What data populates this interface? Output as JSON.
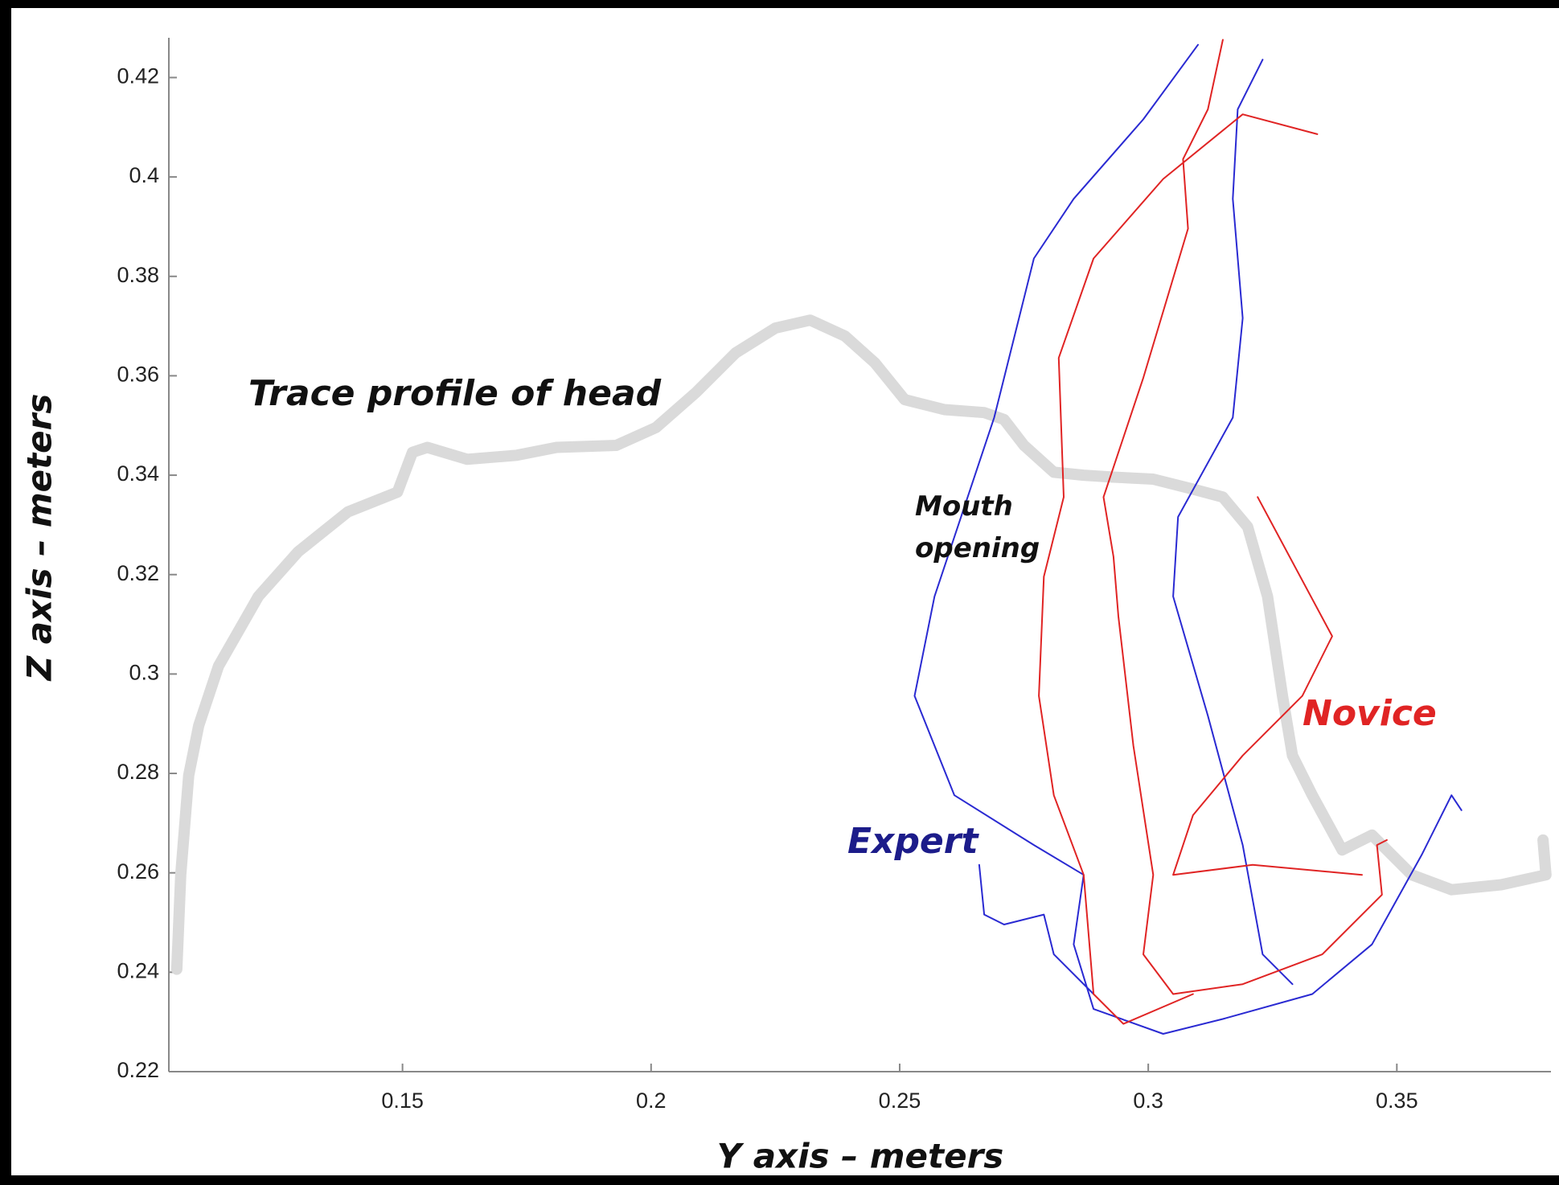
{
  "chart_data": {
    "type": "line",
    "x_label": "Y axis – meters",
    "y_label": "Z axis – meters",
    "annotation": "Mouth opening",
    "xlim": [
      0.103,
      0.381
    ],
    "ylim": [
      0.22,
      0.428
    ],
    "xticks": [
      0.15,
      0.2,
      0.25,
      0.3,
      0.35
    ],
    "yticks": [
      0.22,
      0.24,
      0.26,
      0.28,
      0.3,
      0.32,
      0.34,
      0.36,
      0.38,
      0.4,
      0.42
    ],
    "series": [
      {
        "name": "Trace profile of head",
        "color": "#dadada",
        "x": [
          0.1046,
          0.1054,
          0.107,
          0.109,
          0.113,
          0.121,
          0.129,
          0.139,
          0.149,
          0.152,
          0.155,
          0.163,
          0.173,
          0.181,
          0.193,
          0.201,
          0.209,
          0.217,
          0.225,
          0.232,
          0.239,
          0.245,
          0.251,
          0.259,
          0.267,
          0.271,
          0.275,
          0.281,
          0.287,
          0.293,
          0.301,
          0.309,
          0.315,
          0.32,
          0.324,
          0.327,
          0.329,
          0.333,
          0.339,
          0.345,
          0.353,
          0.361,
          0.371,
          0.38,
          0.3794
        ],
        "values": [
          0.2406,
          0.2596,
          0.2796,
          0.2896,
          0.3016,
          0.3156,
          0.3246,
          0.3326,
          0.3366,
          0.3446,
          0.3456,
          0.3432,
          0.344,
          0.3456,
          0.346,
          0.3496,
          0.3566,
          0.3646,
          0.3696,
          0.3712,
          0.368,
          0.3626,
          0.3552,
          0.3532,
          0.3526,
          0.3512,
          0.346,
          0.3406,
          0.34,
          0.3396,
          0.3392,
          0.3372,
          0.3356,
          0.3296,
          0.3156,
          0.2956,
          0.2836,
          0.2756,
          0.2646,
          0.2676,
          0.2596,
          0.2566,
          0.2576,
          0.2596,
          0.2666
        ]
      },
      {
        "name": "Expert",
        "color": "#2a2ad2",
        "x": [
          0.31,
          0.299,
          0.285,
          0.277,
          0.269,
          0.257,
          0.253,
          0.261,
          0.277,
          0.287,
          0.285,
          0.289,
          0.303,
          0.315,
          0.333,
          0.345,
          0.355,
          0.361,
          0.363,
          null,
          0.323,
          0.318,
          0.317,
          0.319,
          0.317,
          0.306,
          0.305,
          0.312,
          0.319,
          0.323,
          0.329,
          null,
          0.266,
          0.267,
          0.271,
          0.279,
          0.281,
          0.289
        ],
        "values": [
          0.4266,
          0.4116,
          0.3956,
          0.3836,
          0.3516,
          0.3156,
          0.2956,
          0.2756,
          0.2656,
          0.2596,
          0.2456,
          0.2326,
          0.2276,
          0.2306,
          0.2356,
          0.2456,
          0.2636,
          0.2756,
          0.2726,
          null,
          0.4236,
          0.4136,
          0.3956,
          0.3716,
          0.3516,
          0.3316,
          0.3156,
          0.2916,
          0.2656,
          0.2436,
          0.2376,
          null,
          0.2616,
          0.2516,
          0.2496,
          0.2516,
          0.2436,
          0.2356
        ]
      },
      {
        "name": "Novice",
        "color": "#e02424",
        "x": [
          0.315,
          0.312,
          0.307,
          0.308,
          0.299,
          0.291,
          0.293,
          0.294,
          0.297,
          0.301,
          0.299,
          0.305,
          0.319,
          0.335,
          0.347,
          0.346,
          0.348,
          null,
          0.334,
          0.319,
          0.303,
          0.289,
          0.282,
          0.283,
          0.279,
          0.278,
          0.281,
          0.287,
          0.289,
          0.295,
          0.309,
          null,
          0.322,
          0.337,
          0.331,
          0.319,
          0.309,
          0.305,
          0.321,
          0.343
        ],
        "values": [
          0.4276,
          0.4136,
          0.4036,
          0.3896,
          0.3596,
          0.3356,
          0.3236,
          0.3116,
          0.2856,
          0.2596,
          0.2436,
          0.2356,
          0.2376,
          0.2436,
          0.2556,
          0.2656,
          0.2666,
          null,
          0.4086,
          0.4126,
          0.3996,
          0.3836,
          0.3636,
          0.3356,
          0.3196,
          0.2956,
          0.2756,
          0.2596,
          0.2356,
          0.2296,
          0.2356,
          null,
          0.3356,
          0.3076,
          0.2956,
          0.2836,
          0.2716,
          0.2596,
          0.2616,
          0.2596
        ]
      }
    ]
  }
}
